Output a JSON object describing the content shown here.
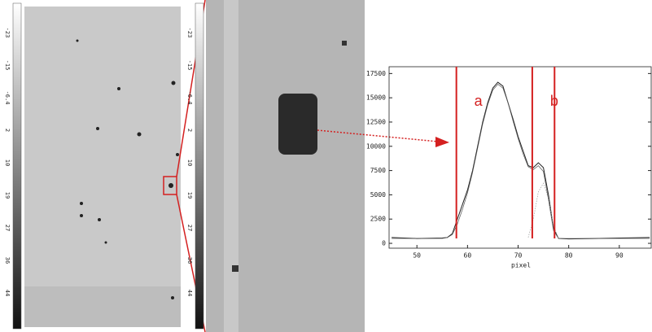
{
  "colorbar_labels": [
    "-23",
    "-15",
    "-6.4",
    "2",
    "10",
    "19",
    "27",
    "36",
    "44"
  ],
  "chart_data": {
    "type": "line",
    "x_label": "pixel",
    "x": [
      45,
      50,
      55,
      56,
      57,
      58,
      59,
      60,
      61,
      62,
      63,
      64,
      65,
      66,
      67,
      68,
      69,
      70,
      71,
      72,
      73,
      74,
      75,
      76,
      77,
      78,
      80,
      85,
      90,
      96
    ],
    "series": [
      {
        "color": "#222",
        "values": [
          600,
          500,
          550,
          600,
          1000,
          2500,
          4000,
          5500,
          7500,
          10000,
          12500,
          14500,
          16000,
          16600,
          16200,
          14500,
          12800,
          11000,
          9500,
          8000,
          7800,
          8300,
          7800,
          5000,
          1500,
          500,
          450,
          500,
          550,
          600
        ]
      },
      {
        "color": "#555",
        "values": [
          500,
          500,
          500,
          600,
          900,
          2000,
          3500,
          5200,
          7300,
          9800,
          12300,
          14300,
          15800,
          16400,
          16000,
          14500,
          12600,
          10800,
          9200,
          7900,
          7600,
          8000,
          7400,
          4500,
          1300,
          500,
          500,
          500,
          500,
          500
        ]
      },
      {
        "color": "#999",
        "values": [
          null,
          null,
          null,
          null,
          null,
          null,
          null,
          null,
          null,
          null,
          null,
          null,
          null,
          null,
          null,
          null,
          null,
          null,
          null,
          600,
          2500,
          5300,
          6200,
          4600,
          1800,
          500,
          null,
          null,
          null,
          null
        ]
      }
    ],
    "regions": [
      {
        "label": "a",
        "x": 57.8
      },
      {
        "label": "b",
        "x": 72.8
      },
      {
        "x": 77.2
      }
    ],
    "xlim": [
      44.5,
      96.3
    ],
    "ylim": [
      -500,
      18200
    ],
    "xticks": [
      50,
      60,
      70,
      80,
      90
    ],
    "yticks": [
      0,
      2500,
      5000,
      7500,
      10000,
      12500,
      15000,
      17500
    ]
  }
}
